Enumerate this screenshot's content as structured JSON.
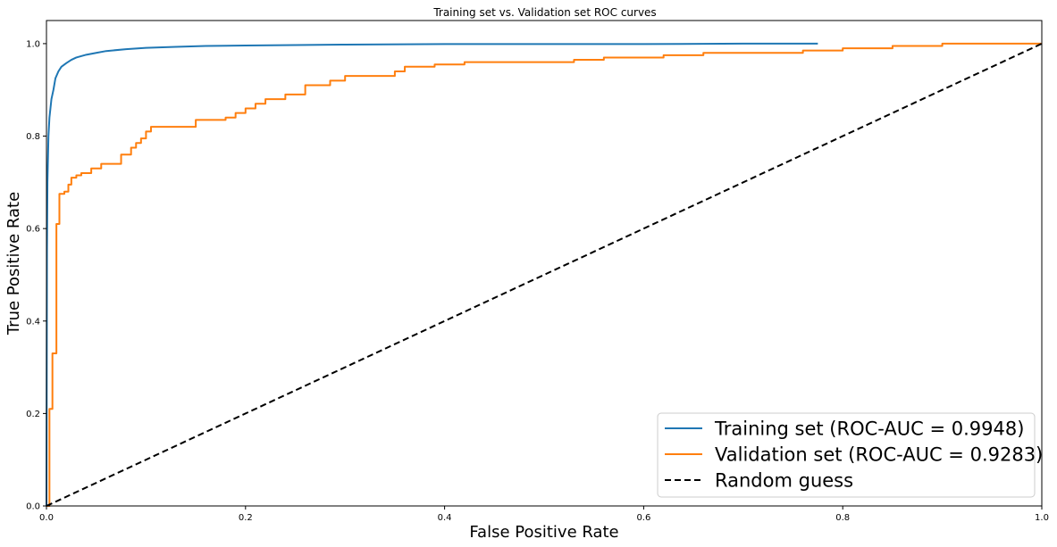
{
  "chart_data": {
    "type": "line",
    "title": "Training set vs. Validation set ROC curves",
    "xlabel": "False Positive Rate",
    "ylabel": "True Positive Rate",
    "xlim": [
      0,
      1
    ],
    "ylim": [
      0,
      1.05
    ],
    "xticks": [
      0.0,
      0.2,
      0.4,
      0.6,
      0.8,
      1.0
    ],
    "xtick_labels": [
      "0.0",
      "0.2",
      "0.4",
      "0.6",
      "0.8",
      "1.0"
    ],
    "yticks": [
      0.0,
      0.2,
      0.4,
      0.6,
      0.8,
      1.0
    ],
    "ytick_labels": [
      "0.0",
      "0.2",
      "0.4",
      "0.6",
      "0.8",
      "1.0"
    ],
    "grid": false,
    "legend_position": "bottom-right",
    "series": [
      {
        "name": "Training set (ROC-AUC = 0.9948)",
        "color": "#1f77b4",
        "style": "solid",
        "x": [
          0,
          0.0005,
          0.001,
          0.002,
          0.003,
          0.004,
          0.005,
          0.007,
          0.009,
          0.012,
          0.015,
          0.02,
          0.025,
          0.03,
          0.04,
          0.05,
          0.06,
          0.08,
          0.1,
          0.13,
          0.16,
          0.2,
          0.25,
          0.3,
          0.4,
          0.5,
          0.6,
          0.7,
          0.775
        ],
        "y": [
          0,
          0.55,
          0.7,
          0.8,
          0.84,
          0.86,
          0.88,
          0.9,
          0.925,
          0.94,
          0.95,
          0.958,
          0.965,
          0.97,
          0.976,
          0.98,
          0.984,
          0.988,
          0.991,
          0.993,
          0.995,
          0.996,
          0.997,
          0.998,
          0.999,
          0.999,
          0.999,
          1.0,
          1.0
        ]
      },
      {
        "name": "Validation set (ROC-AUC = 0.9283)",
        "color": "#ff7f0e",
        "style": "step",
        "x": [
          0,
          0.003,
          0.006,
          0.01,
          0.013,
          0.018,
          0.022,
          0.025,
          0.03,
          0.035,
          0.045,
          0.055,
          0.06,
          0.075,
          0.085,
          0.09,
          0.095,
          0.1,
          0.105,
          0.13,
          0.15,
          0.18,
          0.19,
          0.2,
          0.21,
          0.22,
          0.24,
          0.26,
          0.285,
          0.3,
          0.35,
          0.36,
          0.39,
          0.42,
          0.45,
          0.53,
          0.56,
          0.6,
          0.62,
          0.66,
          0.74,
          0.76,
          0.8,
          0.85,
          0.9,
          1.0
        ],
        "y": [
          0,
          0.21,
          0.33,
          0.61,
          0.675,
          0.68,
          0.695,
          0.71,
          0.715,
          0.72,
          0.73,
          0.74,
          0.74,
          0.76,
          0.775,
          0.785,
          0.795,
          0.81,
          0.82,
          0.82,
          0.835,
          0.84,
          0.85,
          0.86,
          0.87,
          0.88,
          0.89,
          0.91,
          0.92,
          0.93,
          0.94,
          0.95,
          0.955,
          0.96,
          0.96,
          0.965,
          0.97,
          0.97,
          0.975,
          0.98,
          0.98,
          0.985,
          0.99,
          0.995,
          1.0,
          1.0
        ]
      },
      {
        "name": "Random guess",
        "color": "#000000",
        "style": "dashed",
        "x": [
          0,
          1
        ],
        "y": [
          0,
          1
        ]
      }
    ]
  }
}
